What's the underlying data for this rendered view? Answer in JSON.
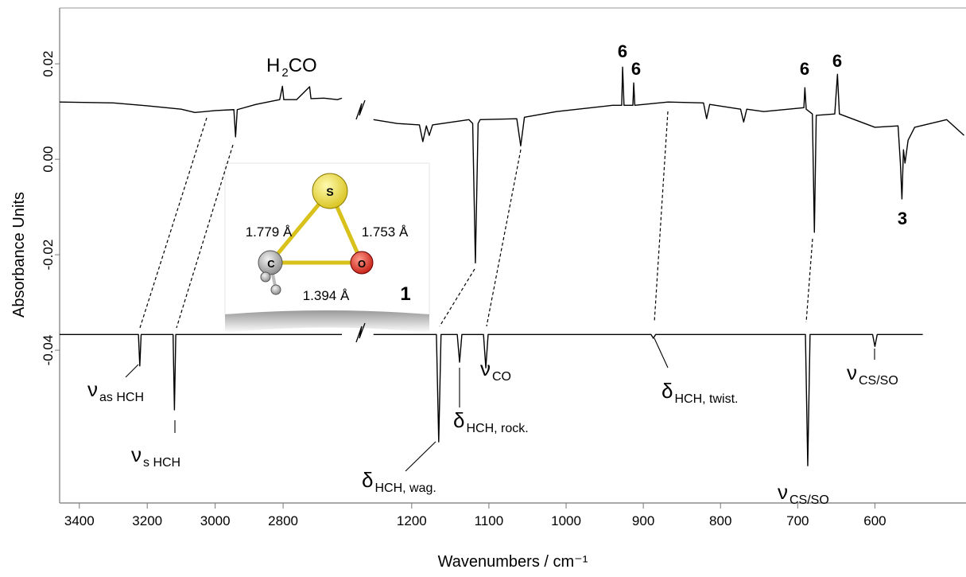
{
  "chart_data": {
    "type": "line",
    "x_label": "Wavenumbers / cm⁻¹",
    "y_label": "Absorbance Units",
    "ylim": [
      -0.072,
      0.0317
    ],
    "yticks": [
      {
        "value": -0.04,
        "label": "-0.04"
      },
      {
        "value": -0.02,
        "label": "-0.02"
      },
      {
        "value": 0,
        "label": "0.00"
      },
      {
        "value": 0.02,
        "label": "0.02"
      }
    ],
    "panels": [
      {
        "xlim": [
          3458,
          2627
        ],
        "xticks": [
          3400,
          3200,
          3000,
          2800
        ],
        "series": [
          {
            "color": "#000000",
            "x": [
              3458,
              3300,
              3200,
              3100,
              3060,
              3000,
              2945,
              2940,
              2935,
              2880,
              2810,
              2802,
              2798,
              2760,
              2722,
              2718,
              2680,
              2640,
              2627
            ],
            "values": [
              0.012,
              0.0118,
              0.0112,
              0.0105,
              0.0098,
              0.0102,
              0.0104,
              0.0047,
              0.0104,
              0.0115,
              0.0125,
              0.0153,
              0.0125,
              0.0125,
              0.0152,
              0.0127,
              0.0128,
              0.0125,
              0.0128
            ]
          },
          {
            "color": "#000000",
            "x": [
              3458,
              3226,
              3222,
              3218,
              3124,
              3120,
              3116,
              2627
            ],
            "values": [
              -0.0367,
              -0.0367,
              -0.0433,
              -0.0367,
              -0.0367,
              -0.0525,
              -0.0367,
              -0.0367
            ]
          }
        ]
      },
      {
        "xlim": [
          1275,
          482
        ],
        "xticks": [
          1200,
          1100,
          1000,
          900,
          800,
          700,
          600
        ],
        "series": [
          {
            "color": "#000000",
            "x": [
              1249.5,
              1218.6,
              1190,
              1185.6,
              1181,
              1177.3,
              1173,
              1125.8,
              1121,
              1117.5,
              1114,
              1111.3,
              1063.9,
              1058.8,
              1054,
              1012.4,
              940,
              928,
              926.8,
              925,
              913.5,
              912.4,
              911,
              868,
              822,
              818,
              814,
              774,
              770,
              766,
              744,
              692,
              690.7,
              689,
              681,
              678.4,
              676,
              652,
              648.5,
              646,
              600,
              570,
              567,
              565,
              563,
              561,
              557,
              548.5,
              507,
              484.5
            ],
            "values": [
              0.0083,
              0.0075,
              0.0072,
              0.0037,
              0.007,
              0.005,
              0.0072,
              0.0083,
              0.0075,
              -0.0217,
              0.0075,
              0.0083,
              0.0085,
              0.0028,
              0.0088,
              0.01,
              0.0113,
              0.0113,
              0.0193,
              0.0113,
              0.0113,
              0.016,
              0.0113,
              0.012,
              0.0118,
              0.0085,
              0.0115,
              0.0105,
              0.0078,
              0.0105,
              0.01,
              0.0108,
              0.015,
              0.0105,
              0.0095,
              -0.0153,
              0.0092,
              0.0095,
              0.0178,
              0.0095,
              0.0067,
              0.007,
              -0.0008,
              -0.0083,
              0.002,
              -0.0008,
              0.004,
              0.0067,
              0.0083,
              0.005
            ]
          },
          {
            "color": "#000000",
            "x": [
              1249.5,
              1168,
              1165,
              1162,
              1141,
              1138,
              1135,
              1107,
              1104,
              1101,
              890,
              887,
              884,
              690,
              687,
              684,
              603,
              600,
              597,
              538
            ],
            "values": [
              -0.0367,
              -0.0367,
              -0.0592,
              -0.0367,
              -0.0367,
              -0.0425,
              -0.0367,
              -0.0367,
              -0.0437,
              -0.0367,
              -0.0367,
              -0.0375,
              -0.0367,
              -0.0367,
              -0.0642,
              -0.0367,
              -0.0367,
              -0.0392,
              -0.0367,
              -0.0367
            ]
          }
        ]
      }
    ],
    "annotations": [
      {
        "main": "H",
        "sub": "2",
        "after": "CO"
      },
      {
        "main": "6"
      },
      {
        "main": "6"
      },
      {
        "main": "6"
      },
      {
        "main": "6"
      },
      {
        "main": "3"
      },
      {
        "main": "ν",
        "sub": "as HCH"
      },
      {
        "main": "ν",
        "sub": "s HCH"
      },
      {
        "main": "δ",
        "sub": "HCH, wag."
      },
      {
        "main": "δ",
        "sub": "HCH, rock."
      },
      {
        "main": "ν",
        "sub": "CO"
      },
      {
        "main": "δ",
        "sub": "HCH, twist."
      },
      {
        "main": "ν",
        "sub": "CS/SO"
      },
      {
        "main": "ν",
        "sub": "CS/SO"
      }
    ],
    "inset": {
      "atoms": [
        "S",
        "C",
        "O"
      ],
      "bonds": [
        "1.779 Å",
        "1.753 Å",
        "1.394 Å"
      ],
      "label": "1"
    }
  }
}
